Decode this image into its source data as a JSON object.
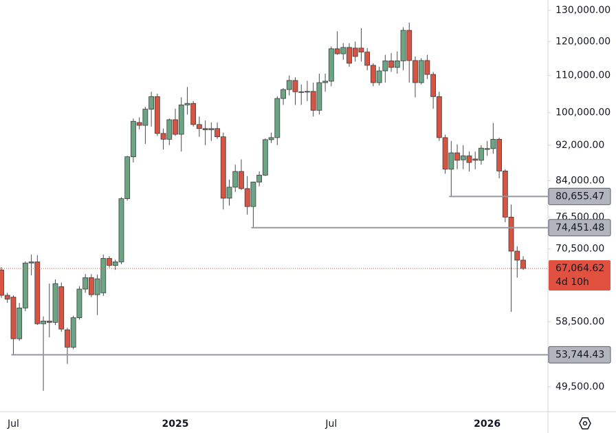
{
  "chart_data": {
    "type": "candlestick",
    "categories": [
      null,
      null,
      "Jul",
      null,
      null,
      null,
      null,
      null,
      null,
      null,
      null,
      null,
      null,
      null,
      null,
      null,
      null,
      null,
      null,
      null,
      null,
      null,
      null,
      null,
      null,
      null,
      null,
      null,
      null,
      "2025",
      null,
      null,
      null,
      null,
      null,
      null,
      null,
      null,
      null,
      null,
      null,
      null,
      null,
      null,
      null,
      null,
      null,
      null,
      null,
      null,
      null,
      null,
      null,
      null,
      null,
      "Jul",
      null,
      null,
      null,
      null,
      null,
      null,
      null,
      null,
      null,
      null,
      null,
      null,
      null,
      null,
      null,
      null,
      null,
      null,
      null,
      null,
      null,
      null,
      null,
      null,
      null,
      "2026",
      null,
      null,
      null,
      null,
      null,
      null
    ],
    "open": [
      66800,
      62600,
      62300,
      56000,
      60600,
      68000,
      68200,
      58200,
      58600,
      58400,
      64000,
      57300,
      54800,
      59100,
      63600,
      65500,
      62700,
      63000,
      68800,
      67600,
      68200,
      80200,
      89300,
      97500,
      96800,
      100900,
      104200,
      94800,
      93400,
      98200,
      94600,
      102000,
      102400,
      97000,
      96000,
      95700,
      96000,
      94000,
      80300,
      82600,
      86000,
      82300,
      78600,
      83700,
      85200,
      93300,
      93800,
      103700,
      106100,
      108600,
      105500,
      105400,
      105600,
      100600,
      108000,
      108400,
      117800,
      116300,
      118200,
      118000,
      118000,
      116800,
      112900,
      108000,
      111300,
      114200,
      112300,
      114200,
      123500,
      114300,
      108000,
      114300,
      110300,
      104200,
      93800,
      86500,
      90200,
      88600,
      89500,
      88800,
      88500,
      91000,
      91200,
      93400,
      86100,
      76500,
      70100,
      68500
    ],
    "high": [
      67300,
      63000,
      62600,
      61400,
      68300,
      69500,
      69400,
      59300,
      64500,
      65200,
      64700,
      57600,
      59400,
      64100,
      66100,
      66100,
      66000,
      69500,
      69200,
      68600,
      80500,
      89500,
      98500,
      98800,
      101500,
      105500,
      105000,
      96000,
      98500,
      101000,
      104000,
      106800,
      103000,
      99000,
      98000,
      97500,
      97500,
      95000,
      84200,
      87500,
      88700,
      85000,
      83800,
      86000,
      93600,
      95000,
      104300,
      106500,
      110000,
      109500,
      107500,
      108500,
      108000,
      110500,
      110500,
      118500,
      123200,
      119500,
      119500,
      120000,
      124200,
      118000,
      113500,
      112500,
      116000,
      116500,
      117000,
      124500,
      126000,
      115500,
      115000,
      116000,
      111000,
      105500,
      94500,
      93000,
      92200,
      92000,
      90500,
      90500,
      92000,
      93000,
      97400,
      93800,
      86500,
      79000,
      71000,
      69200
    ],
    "low": [
      62200,
      61400,
      53744.43,
      55700,
      60100,
      65900,
      58000,
      49000,
      56200,
      58000,
      57000,
      52500,
      54500,
      58800,
      63000,
      62300,
      59500,
      62500,
      67200,
      66800,
      67800,
      79800,
      88000,
      95800,
      92300,
      96500,
      94200,
      91000,
      92000,
      94200,
      90500,
      99500,
      96500,
      94000,
      92000,
      93000,
      93500,
      78000,
      78800,
      81600,
      82000,
      77000,
      74451.48,
      82800,
      85000,
      92500,
      92000,
      102000,
      104500,
      102000,
      102000,
      103000,
      99000,
      99500,
      105500,
      107000,
      116000,
      114500,
      112500,
      114000,
      114000,
      111500,
      107000,
      107200,
      108000,
      111000,
      110500,
      111500,
      108000,
      104000,
      107500,
      109000,
      101000,
      93000,
      85500,
      80655.47,
      86500,
      86500,
      86000,
      86500,
      87500,
      89500,
      90000,
      84500,
      75500,
      60000,
      65500,
      66800
    ],
    "close": [
      62600,
      62000,
      56000,
      60600,
      68000,
      68200,
      58200,
      58600,
      58400,
      64500,
      57400,
      54800,
      59100,
      63600,
      65500,
      62700,
      65300,
      68800,
      67600,
      68200,
      80200,
      89300,
      97800,
      96800,
      100900,
      104200,
      94800,
      93400,
      98200,
      94600,
      102000,
      102400,
      97000,
      96000,
      95700,
      96000,
      94000,
      80300,
      82600,
      86000,
      82300,
      78600,
      83700,
      85200,
      93300,
      93800,
      103700,
      106100,
      108600,
      105500,
      105400,
      105600,
      100600,
      108000,
      108400,
      117800,
      116300,
      118200,
      113500,
      115500,
      116800,
      112900,
      108000,
      111300,
      114200,
      112300,
      114200,
      123500,
      114300,
      108000,
      114300,
      110300,
      104200,
      93800,
      86500,
      90200,
      88500,
      89500,
      88000,
      88500,
      91300,
      91200,
      93400,
      86100,
      76500,
      70100,
      68500,
      67064.62
    ],
    "up_color": "#6ba583",
    "down_color": "#d75442",
    "log_scale": true,
    "ylim": [
      46450,
      133490
    ],
    "yticks": [
      {
        "value": 130000,
        "label": "130,000.00"
      },
      {
        "value": 120000,
        "label": "120,000.00"
      },
      {
        "value": 110000,
        "label": "110,000.00"
      },
      {
        "value": 100000,
        "label": "100,000.00"
      },
      {
        "value": 92000,
        "label": "92,000.00"
      },
      {
        "value": 84000,
        "label": "84,000.00"
      },
      {
        "value": 76500,
        "label": "76,500.00"
      },
      {
        "value": 70500,
        "label": "70,500.00"
      },
      {
        "value": 58500,
        "label": "58,500.00"
      },
      {
        "value": 49500,
        "label": "49,500.00"
      }
    ],
    "price_lines": [
      {
        "value": 80655.47,
        "label": "80,655.47"
      },
      {
        "value": 74451.48,
        "label": "74,451.48"
      },
      {
        "value": 53744.43,
        "label": "53,744.43"
      }
    ],
    "last_price": {
      "value": 67064.62,
      "label": "67,064.62",
      "countdown": "4d 10h",
      "color": "#e0523f"
    }
  }
}
